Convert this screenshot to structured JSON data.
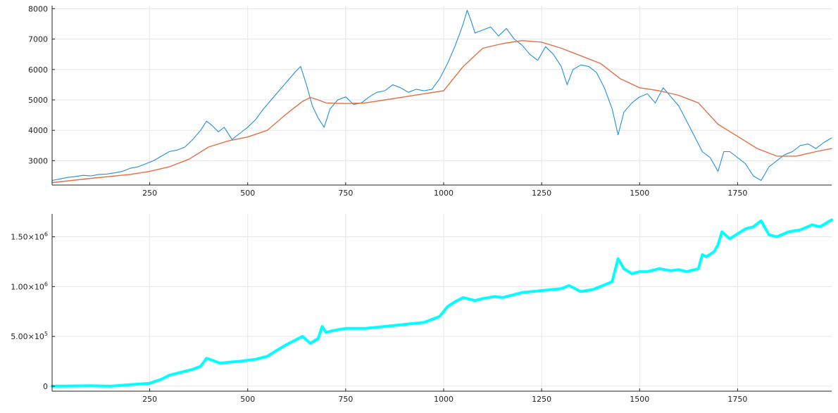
{
  "chart_data": [
    {
      "type": "line",
      "title": "",
      "xlabel": "",
      "ylabel": "",
      "xlim": [
        1,
        1990
      ],
      "ylim": [
        2200,
        8100
      ],
      "xticks": [
        250,
        500,
        750,
        1000,
        1250,
        1500,
        1750
      ],
      "xtick_labels": [
        "250",
        "500",
        "750",
        "1000",
        "1250",
        "1500",
        "1750"
      ],
      "yticks": [
        3000,
        4000,
        5000,
        6000,
        7000,
        8000
      ],
      "ytick_labels": [
        "3000",
        "4000",
        "5000",
        "6000",
        "7000",
        "8000"
      ],
      "grid": true,
      "legend": "none",
      "series": [
        {
          "color": "#1f8fde",
          "stroke_width": 1.1,
          "x": [
            1,
            20,
            40,
            60,
            80,
            100,
            120,
            140,
            160,
            180,
            200,
            220,
            240,
            260,
            280,
            300,
            320,
            340,
            360,
            380,
            395,
            410,
            425,
            440,
            460,
            480,
            500,
            520,
            540,
            560,
            580,
            600,
            620,
            635,
            650,
            665,
            680,
            695,
            710,
            730,
            750,
            770,
            790,
            810,
            830,
            850,
            870,
            890,
            910,
            930,
            950,
            970,
            990,
            1010,
            1030,
            1050,
            1060,
            1070,
            1080,
            1100,
            1120,
            1140,
            1160,
            1180,
            1200,
            1220,
            1240,
            1260,
            1280,
            1300,
            1315,
            1330,
            1350,
            1370,
            1390,
            1410,
            1430,
            1445,
            1460,
            1480,
            1500,
            1520,
            1540,
            1560,
            1580,
            1600,
            1620,
            1640,
            1660,
            1680,
            1700,
            1715,
            1730,
            1750,
            1770,
            1790,
            1810,
            1830,
            1850,
            1870,
            1890,
            1910,
            1930,
            1950,
            1970,
            1990
          ],
          "y": [
            2350,
            2400,
            2450,
            2480,
            2520,
            2500,
            2550,
            2560,
            2600,
            2650,
            2750,
            2800,
            2900,
            3000,
            3150,
            3300,
            3350,
            3450,
            3700,
            4000,
            4300,
            4150,
            3950,
            4100,
            3700,
            3900,
            4100,
            4350,
            4700,
            5000,
            5300,
            5600,
            5900,
            6100,
            5500,
            4800,
            4400,
            4100,
            4700,
            5000,
            5100,
            4850,
            4900,
            5100,
            5250,
            5300,
            5500,
            5400,
            5250,
            5350,
            5300,
            5350,
            5700,
            6200,
            6800,
            7500,
            7950,
            7600,
            7200,
            7300,
            7400,
            7100,
            7350,
            7000,
            6800,
            6500,
            6300,
            6750,
            6500,
            6100,
            5500,
            6000,
            6150,
            6100,
            5900,
            5400,
            4700,
            3850,
            4600,
            4900,
            5100,
            5200,
            4900,
            5400,
            5100,
            4800,
            4300,
            3800,
            3300,
            3100,
            2650,
            3300,
            3300,
            3100,
            2900,
            2500,
            2350,
            2800,
            3000,
            3200,
            3300,
            3500,
            3550,
            3400,
            3600,
            3750
          ]
        },
        {
          "color": "#e26f46",
          "stroke_width": 1.4,
          "x": [
            1,
            100,
            200,
            250,
            300,
            350,
            400,
            450,
            500,
            550,
            600,
            640,
            660,
            680,
            700,
            750,
            800,
            850,
            900,
            950,
            1000,
            1050,
            1100,
            1150,
            1200,
            1250,
            1300,
            1350,
            1400,
            1450,
            1500,
            1550,
            1600,
            1650,
            1700,
            1750,
            1800,
            1850,
            1900,
            1950,
            1990
          ],
          "y": [
            2280,
            2420,
            2550,
            2650,
            2800,
            3050,
            3450,
            3650,
            3780,
            4000,
            4550,
            4950,
            5080,
            5000,
            4900,
            4880,
            4900,
            5000,
            5100,
            5200,
            5300,
            6100,
            6700,
            6850,
            6950,
            6900,
            6700,
            6450,
            6200,
            5700,
            5400,
            5300,
            5150,
            4900,
            4200,
            3800,
            3400,
            3150,
            3150,
            3300,
            3400
          ]
        }
      ]
    },
    {
      "type": "line",
      "title": "",
      "xlabel": "",
      "ylabel": "",
      "xlim": [
        1,
        1990
      ],
      "ylim": [
        -50000,
        1730000
      ],
      "xticks": [
        250,
        500,
        750,
        1000,
        1250,
        1500,
        1750
      ],
      "xtick_labels": [
        "250",
        "500",
        "750",
        "1000",
        "1250",
        "1500",
        "1750"
      ],
      "yticks": [
        0,
        500000,
        1000000,
        1500000
      ],
      "ytick_labels": [
        {
          "mantissa": "0",
          "exponent": ""
        },
        {
          "mantissa": "5.00×10",
          "exponent": "5"
        },
        {
          "mantissa": "1.00×10",
          "exponent": "6"
        },
        {
          "mantissa": "1.50×10",
          "exponent": "6"
        }
      ],
      "grid": true,
      "legend": "none",
      "series": [
        {
          "color": "#00ffff",
          "stroke_width": 4,
          "x": [
            1,
            50,
            100,
            150,
            200,
            250,
            280,
            300,
            330,
            360,
            380,
            395,
            410,
            430,
            450,
            480,
            520,
            550,
            570,
            600,
            620,
            640,
            660,
            680,
            690,
            700,
            720,
            750,
            800,
            850,
            900,
            950,
            990,
            1010,
            1030,
            1050,
            1080,
            1100,
            1130,
            1150,
            1180,
            1200,
            1250,
            1300,
            1320,
            1350,
            1380,
            1400,
            1430,
            1445,
            1460,
            1480,
            1500,
            1520,
            1550,
            1580,
            1600,
            1620,
            1650,
            1660,
            1670,
            1690,
            1700,
            1710,
            1730,
            1750,
            1770,
            1790,
            1810,
            1830,
            1850,
            1880,
            1910,
            1940,
            1960,
            1990
          ],
          "y": [
            0,
            2000,
            5000,
            0,
            15000,
            30000,
            70000,
            110000,
            140000,
            170000,
            200000,
            280000,
            260000,
            230000,
            240000,
            250000,
            270000,
            300000,
            350000,
            420000,
            460000,
            500000,
            430000,
            480000,
            600000,
            540000,
            560000,
            580000,
            580000,
            600000,
            620000,
            640000,
            700000,
            800000,
            850000,
            890000,
            860000,
            880000,
            900000,
            890000,
            920000,
            940000,
            960000,
            980000,
            1010000,
            950000,
            970000,
            1000000,
            1050000,
            1280000,
            1180000,
            1130000,
            1150000,
            1150000,
            1180000,
            1160000,
            1170000,
            1150000,
            1180000,
            1320000,
            1300000,
            1350000,
            1420000,
            1550000,
            1480000,
            1530000,
            1580000,
            1600000,
            1660000,
            1520000,
            1500000,
            1550000,
            1570000,
            1620000,
            1600000,
            1670000
          ]
        }
      ]
    }
  ]
}
